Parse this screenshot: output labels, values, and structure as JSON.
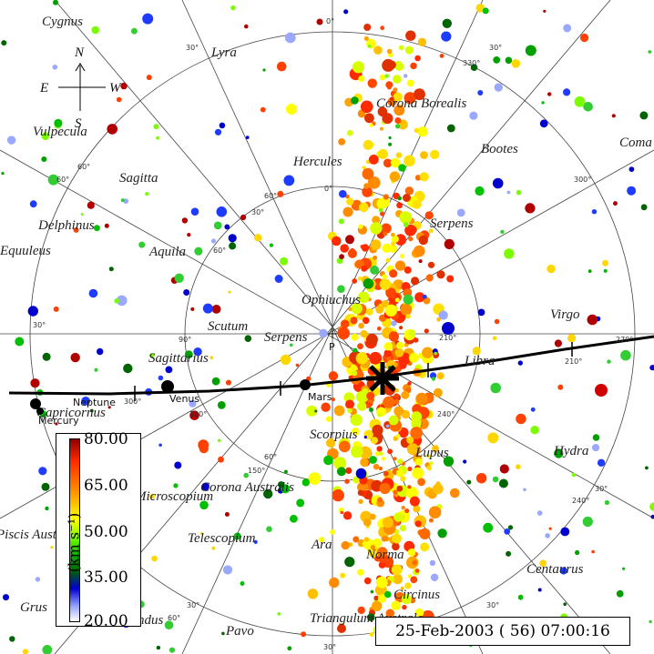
{
  "chart_data": {
    "type": "scatter",
    "timestamp": "25-Feb-2003 ( 56) 07:00:16",
    "colorbar": {
      "title": "(km s⁻¹)",
      "ticks": [
        "80.00",
        "65.00",
        "50.00",
        "35.00",
        "20.00"
      ],
      "range": [
        20,
        80
      ]
    },
    "compass": {
      "north": "N",
      "south": "S",
      "east": "E",
      "west": "W"
    },
    "ring_labels": [
      "0°",
      "30°",
      "60°",
      "90°",
      "120°",
      "150°",
      "210°",
      "240°",
      "270°",
      "300°",
      "330°"
    ],
    "constellations": [
      "Cygnus",
      "Lyra",
      "Vulpecula",
      "Corona Borealis",
      "Bootes",
      "Coma",
      "Hercules",
      "Sagitta",
      "Delphinus",
      "Serpens",
      "Aquila",
      "Equuleus",
      "Ophiuchus",
      "Virgo",
      "Scutum",
      "Serpens",
      "Libra",
      "Sagittarius",
      "Capricornus",
      "Hydra",
      "Lupus",
      "Scorpius",
      "Corona Australis",
      "Microscopium",
      "Piscis Austrinus",
      "Telescopium",
      "Ara",
      "Norma",
      "Centaurus",
      "Grus",
      "Indus",
      "Circinus",
      "Pavo",
      "Triangulum Australe"
    ],
    "planets": [
      "Neptune",
      "Mercury",
      "Venus",
      "Mars"
    ],
    "pole_label": "P",
    "sun_marker": "Sun"
  }
}
